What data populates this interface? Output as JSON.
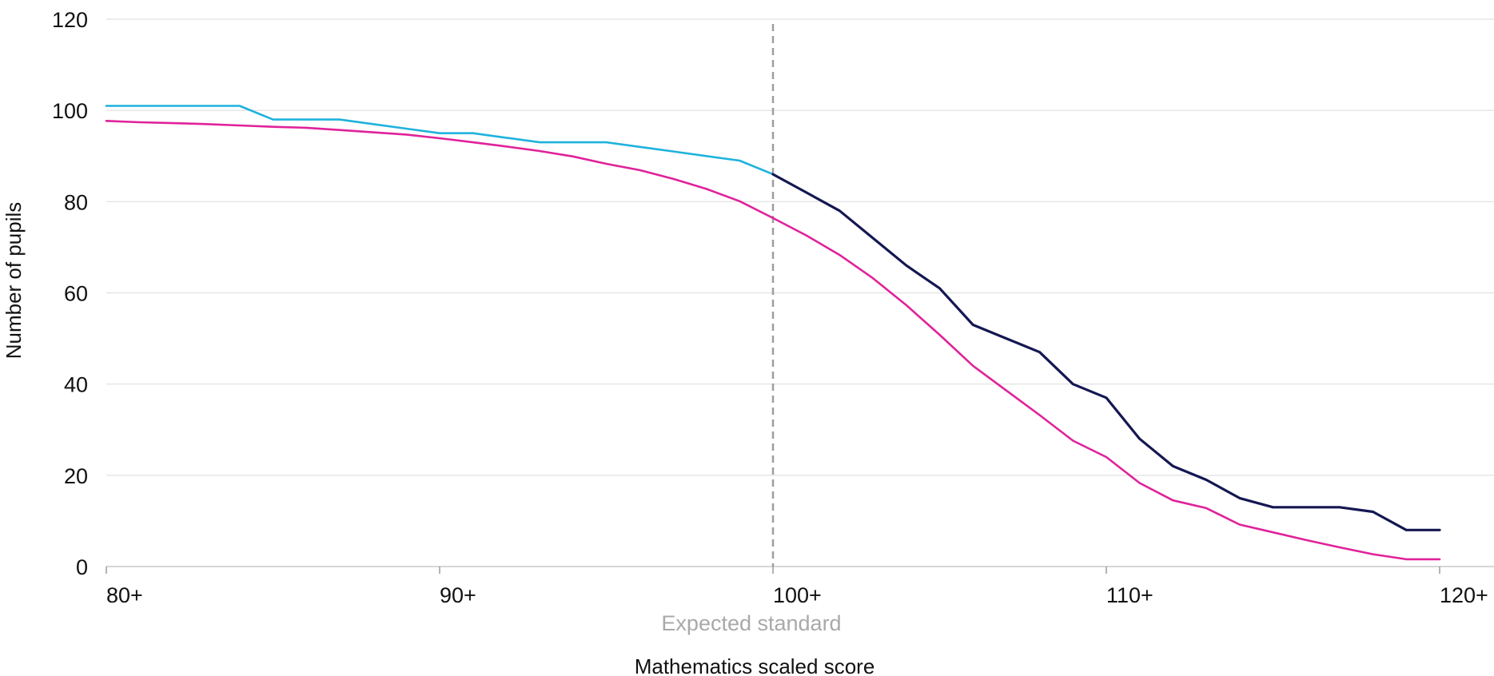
{
  "chart_data": {
    "type": "line",
    "title": "",
    "xlabel": "Mathematics scaled score",
    "ylabel": "Number of pupils",
    "xlim": [
      80,
      120
    ],
    "ylim": [
      0,
      120
    ],
    "x_ticks": [
      80,
      90,
      100,
      110,
      120
    ],
    "x_tick_labels": [
      "80+",
      "90+",
      "100+",
      "110+",
      "120+"
    ],
    "y_ticks": [
      0,
      20,
      40,
      60,
      80,
      100,
      120
    ],
    "y_tick_labels": [
      "0",
      "20",
      "40",
      "60",
      "80",
      "100",
      "120"
    ],
    "grid": "horizontal",
    "legend": "none",
    "annotation": {
      "label": "Expected standard",
      "x": 100,
      "color": "#a9a9a9"
    },
    "series": [
      {
        "color": "#1fb2dd",
        "x": [
          80,
          81,
          82,
          83,
          84,
          85,
          86,
          87,
          88,
          89,
          90,
          91,
          92,
          93,
          94,
          95,
          96,
          97,
          98,
          99,
          100
        ],
        "values": [
          101,
          101,
          101,
          101,
          101,
          98,
          98,
          98,
          97,
          96,
          95,
          95,
          94,
          93,
          93,
          93,
          92,
          91,
          90,
          89,
          86
        ]
      },
      {
        "color": "#151752",
        "x": [
          100,
          101,
          102,
          103,
          104,
          105,
          106,
          107,
          108,
          109,
          110,
          111,
          112,
          113,
          114,
          115,
          116,
          117,
          118,
          119,
          120
        ],
        "values": [
          86,
          82,
          78,
          72,
          66,
          61,
          53,
          50,
          47,
          40,
          37,
          28,
          22,
          19,
          15,
          13,
          13,
          13,
          12,
          8,
          8
        ]
      },
      {
        "color": "#e0229a",
        "x": [
          80,
          81,
          82,
          83,
          84,
          85,
          86,
          87,
          88,
          89,
          90,
          91,
          92,
          93,
          94,
          95,
          96,
          97,
          98,
          99,
          100,
          101,
          102,
          103,
          104,
          105,
          106,
          107,
          108,
          109,
          110,
          111,
          112,
          113,
          114,
          115,
          116,
          117,
          118,
          119,
          120
        ],
        "values": [
          97.7,
          97.4,
          97.2,
          97.0,
          96.7,
          96.4,
          96.2,
          95.7,
          95.2,
          94.7,
          93.9,
          93.0,
          92.1,
          91.1,
          89.9,
          88.3,
          86.9,
          85.0,
          82.8,
          80.1,
          76.4,
          72.6,
          68.3,
          63.2,
          57.3,
          50.8,
          44.0,
          38.6,
          33.2,
          27.6,
          24.0,
          18.3,
          14.5,
          12.8,
          9.2,
          7.5,
          5.8,
          4.2,
          2.7,
          1.6,
          1.6
        ]
      }
    ]
  }
}
